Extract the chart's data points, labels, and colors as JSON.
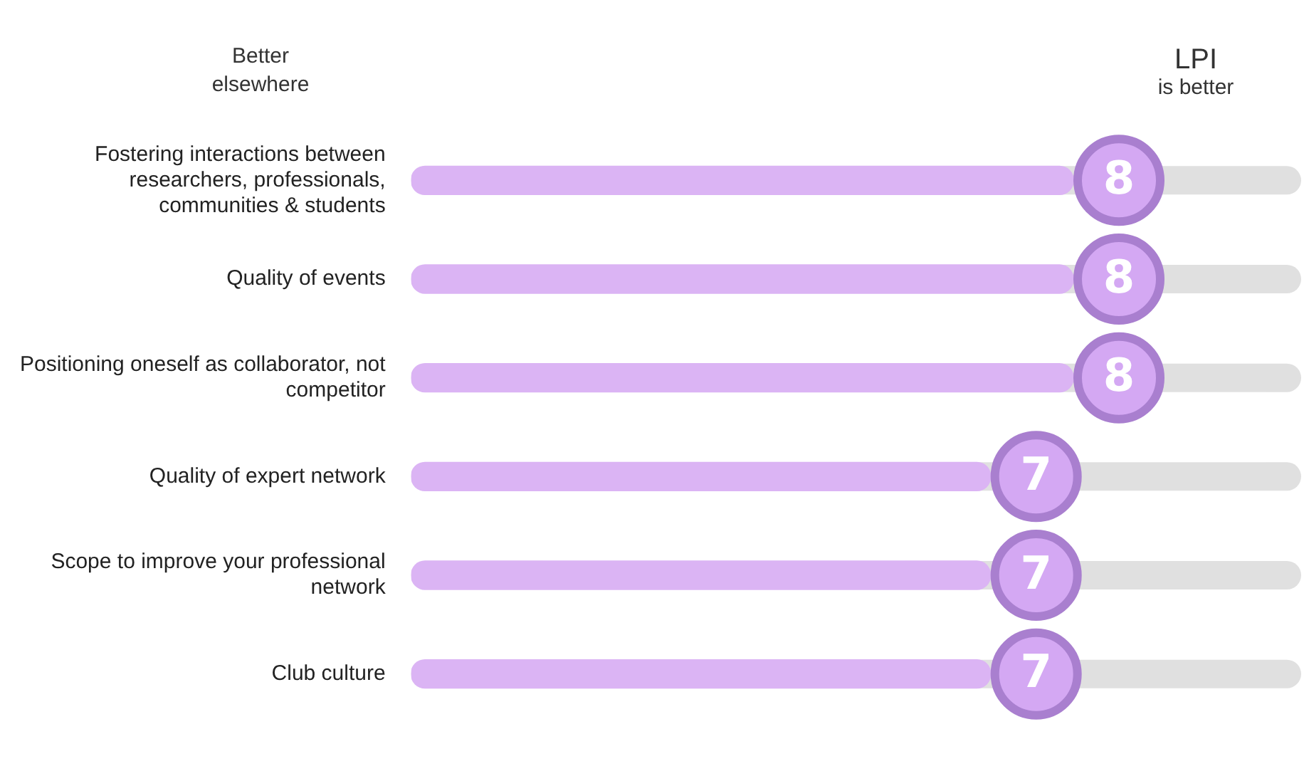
{
  "chart_data": {
    "type": "bar",
    "orientation": "horizontal",
    "categories": [
      "Fostering interactions between researchers, professionals, communities & students",
      "Quality of events",
      "Positioning oneself as collaborator, not competitor",
      "Quality of expert network",
      "Scope to improve your professional network",
      "Club culture"
    ],
    "values": [
      8,
      8,
      8,
      7,
      7,
      7
    ],
    "color": "#dbb4f4",
    "tick_labels": "y",
    "data_labels": true,
    "annotations": [
      "Better elsewhere",
      "LPI is better"
    ]
  }
}
